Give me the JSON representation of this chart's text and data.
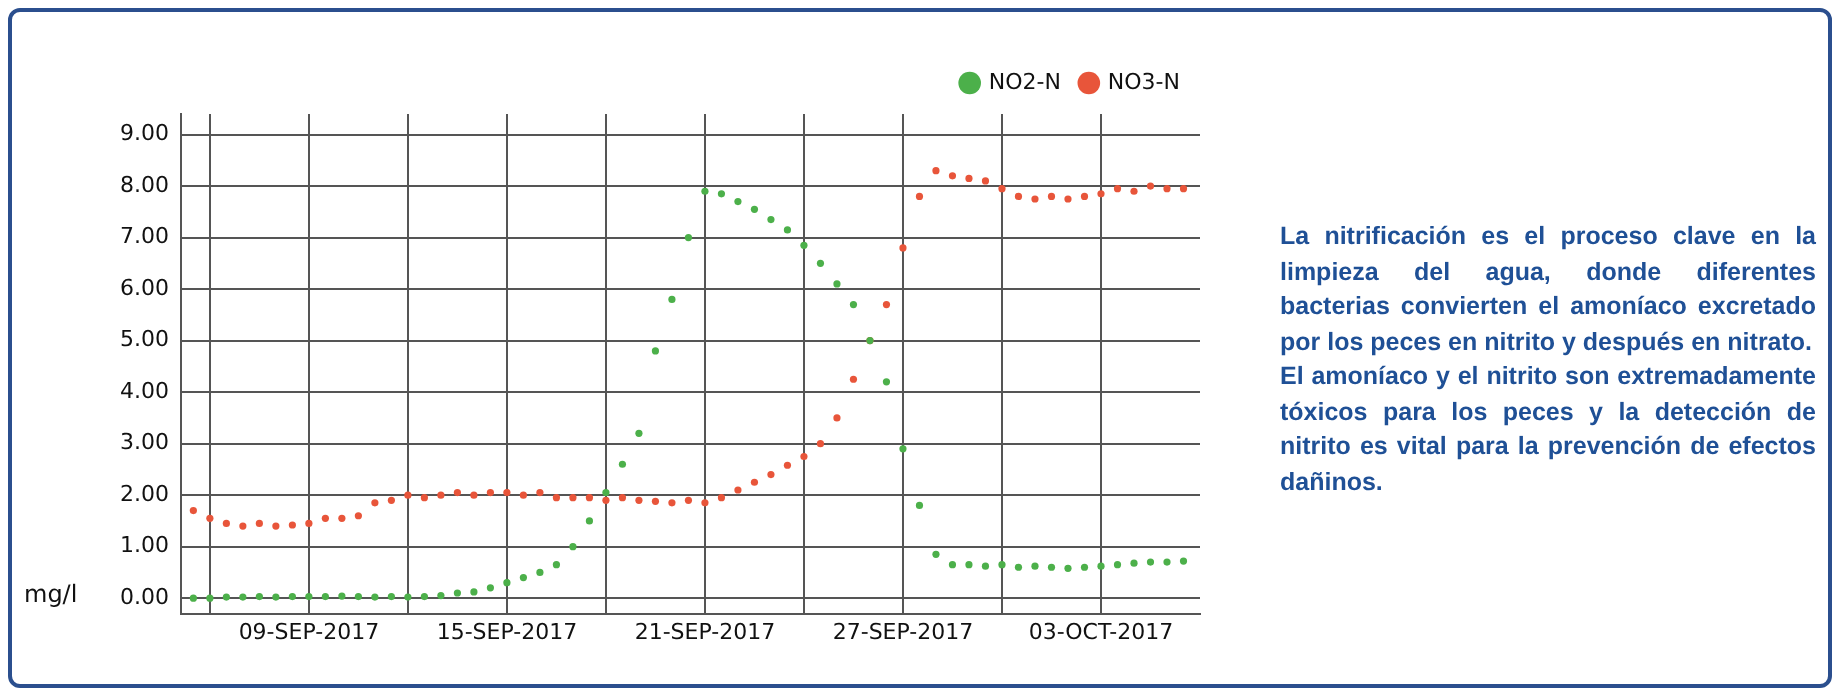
{
  "chart_data": {
    "type": "scatter",
    "ylabel": "mg/l",
    "x": [
      "2017-09-05T12:00",
      "2017-09-06",
      "2017-09-06T12:00",
      "2017-09-07",
      "2017-09-07T12:00",
      "2017-09-08",
      "2017-09-08T12:00",
      "2017-09-09",
      "2017-09-09T12:00",
      "2017-09-10",
      "2017-09-10T12:00",
      "2017-09-11",
      "2017-09-11T12:00",
      "2017-09-12",
      "2017-09-12T12:00",
      "2017-09-13",
      "2017-09-13T12:00",
      "2017-09-14",
      "2017-09-14T12:00",
      "2017-09-15",
      "2017-09-15T12:00",
      "2017-09-16",
      "2017-09-16T12:00",
      "2017-09-17",
      "2017-09-17T12:00",
      "2017-09-18",
      "2017-09-18T12:00",
      "2017-09-19",
      "2017-09-19T12:00",
      "2017-09-20",
      "2017-09-20T12:00",
      "2017-09-21",
      "2017-09-21T12:00",
      "2017-09-22",
      "2017-09-22T12:00",
      "2017-09-23",
      "2017-09-23T12:00",
      "2017-09-24",
      "2017-09-24T12:00",
      "2017-09-25",
      "2017-09-25T12:00",
      "2017-09-26",
      "2017-09-26T12:00",
      "2017-09-27",
      "2017-09-27T12:00",
      "2017-09-28",
      "2017-09-28T12:00",
      "2017-09-29",
      "2017-09-29T12:00",
      "2017-09-30",
      "2017-09-30T12:00",
      "2017-10-01",
      "2017-10-01T12:00",
      "2017-10-02",
      "2017-10-02T12:00",
      "2017-10-03",
      "2017-10-03T12:00",
      "2017-10-04",
      "2017-10-04T12:00",
      "2017-10-05",
      "2017-10-05T12:00"
    ],
    "series": [
      {
        "name": "NO2-N",
        "color": "#4cb04a",
        "values": [
          0.0,
          0.0,
          0.02,
          0.02,
          0.03,
          0.02,
          0.03,
          0.03,
          0.03,
          0.04,
          0.03,
          0.02,
          0.03,
          0.02,
          0.03,
          0.05,
          0.1,
          0.12,
          0.2,
          0.3,
          0.4,
          0.5,
          0.65,
          1.0,
          1.5,
          2.05,
          2.6,
          3.2,
          4.8,
          5.8,
          7.0,
          7.9,
          7.85,
          7.7,
          7.55,
          7.35,
          7.15,
          6.85,
          6.5,
          6.1,
          5.7,
          5.0,
          4.2,
          2.9,
          1.8,
          0.85,
          0.65,
          0.65,
          0.62,
          0.65,
          0.6,
          0.62,
          0.6,
          0.58,
          0.6,
          0.62,
          0.65,
          0.68,
          0.7,
          0.7,
          0.72
        ]
      },
      {
        "name": "NO3-N",
        "color": "#e8553a",
        "values": [
          1.7,
          1.55,
          1.45,
          1.4,
          1.45,
          1.4,
          1.42,
          1.45,
          1.55,
          1.55,
          1.6,
          1.85,
          1.9,
          2.0,
          1.95,
          2.0,
          2.05,
          2.0,
          2.05,
          2.05,
          2.0,
          2.05,
          1.95,
          1.95,
          1.95,
          1.9,
          1.95,
          1.9,
          1.88,
          1.85,
          1.9,
          1.85,
          1.95,
          2.1,
          2.25,
          2.4,
          2.58,
          2.75,
          3.0,
          3.5,
          4.25,
          5.0,
          5.7,
          6.8,
          7.8,
          8.3,
          8.2,
          8.15,
          8.1,
          7.95,
          7.8,
          7.75,
          7.8,
          7.75,
          7.8,
          7.85,
          7.95,
          7.9,
          8.0,
          7.95,
          7.95
        ]
      }
    ],
    "xlim": [
      "2017-09-05T03:00",
      "2017-10-06"
    ],
    "xticks": [
      {
        "value": "2017-09-06",
        "label": null
      },
      {
        "value": "2017-09-09",
        "label": "09-SEP-2017"
      },
      {
        "value": "2017-09-12",
        "label": null
      },
      {
        "value": "2017-09-15",
        "label": "15-SEP-2017"
      },
      {
        "value": "2017-09-18",
        "label": null
      },
      {
        "value": "2017-09-21",
        "label": "21-SEP-2017"
      },
      {
        "value": "2017-09-24",
        "label": null
      },
      {
        "value": "2017-09-27",
        "label": "27-SEP-2017"
      },
      {
        "value": "2017-09-30",
        "label": null
      },
      {
        "value": "2017-10-03",
        "label": "03-OCT-2017"
      }
    ],
    "ylim": [
      -0.3,
      9.4
    ],
    "yticks": [
      {
        "value": 0,
        "label": "0.00"
      },
      {
        "value": 1,
        "label": "1.00"
      },
      {
        "value": 2,
        "label": "2.00"
      },
      {
        "value": 3,
        "label": "3.00"
      },
      {
        "value": 4,
        "label": "4.00"
      },
      {
        "value": 5,
        "label": "5.00"
      },
      {
        "value": 6,
        "label": "6.00"
      },
      {
        "value": 7,
        "label": "7.00"
      },
      {
        "value": 8,
        "label": "8.00"
      },
      {
        "value": 9,
        "label": "9.00"
      }
    ],
    "grid": true,
    "legend": "top right",
    "marker": "circle",
    "annotations": [
      "La nitrificación es el proceso clave en la limpieza del agua, donde diferentes bacterias convierten el amoníaco excretado por los peces en nitrito y después en nitrato.",
      "El amoníaco y el nitrito son extremadamente tóxicos para los peces y la detección de nitrito es vital para la prevención de efectos dañinos."
    ]
  }
}
